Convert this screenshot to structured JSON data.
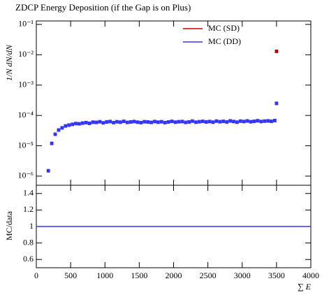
{
  "chart_data": [
    {
      "type": "step",
      "title": "ZDCP Energy Deposition (if the Gap is on Plus)",
      "ylabel": "1/N dN/dN",
      "log_y": true,
      "xlim": [
        0,
        4000
      ],
      "ylim": [
        5e-07,
        0.13
      ],
      "yticks": [
        {
          "value": 1e-06,
          "label": "10⁻⁶"
        },
        {
          "value": 1e-05,
          "label": "10⁻⁵"
        },
        {
          "value": 0.0001,
          "label": "10⁻⁴"
        },
        {
          "value": 0.001,
          "label": "10⁻³"
        },
        {
          "value": 0.01,
          "label": "10⁻²"
        },
        {
          "value": 0.1,
          "label": "10⁻¹"
        }
      ],
      "legend": "top-right",
      "x": [
        175,
        225,
        275,
        325,
        375,
        425,
        475,
        525,
        575,
        625,
        675,
        725,
        775,
        825,
        875,
        925,
        975,
        1025,
        1075,
        1125,
        1175,
        1225,
        1275,
        1325,
        1375,
        1425,
        1475,
        1525,
        1575,
        1625,
        1675,
        1725,
        1775,
        1825,
        1875,
        1925,
        1975,
        2025,
        2075,
        2125,
        2175,
        2225,
        2275,
        2325,
        2375,
        2425,
        2475,
        2525,
        2575,
        2625,
        2675,
        2725,
        2775,
        2825,
        2875,
        2925,
        2975,
        3025,
        3075,
        3125,
        3175,
        3225,
        3275,
        3325,
        3375,
        3425,
        3475,
        3500
      ],
      "series": [
        {
          "name": "MC (SD)",
          "color": "#cc0000",
          "x": [
            3500
          ],
          "values": [
            0.013
          ]
        },
        {
          "name": "MC (DD)",
          "color": "#3333ff",
          "values": [
            1.5e-06,
            1.2e-05,
            2.4e-05,
            3.3e-05,
            3.9e-05,
            4.5e-05,
            4.8e-05,
            5.1e-05,
            5.4e-05,
            5.3e-05,
            5.6e-05,
            5.8e-05,
            5.5e-05,
            6e-05,
            5.9e-05,
            6.2e-05,
            5.7e-05,
            6.1e-05,
            6.3e-05,
            5.8e-05,
            6.2e-05,
            6e-05,
            6.4e-05,
            5.9e-05,
            6.1e-05,
            6.3e-05,
            6e-05,
            5.8e-05,
            6.2e-05,
            6.1e-05,
            5.9e-05,
            6.3e-05,
            6e-05,
            6.2e-05,
            5.8e-05,
            6.1e-05,
            6.4e-05,
            6e-05,
            6.2e-05,
            6.3e-05,
            5.9e-05,
            6.1e-05,
            6.5e-05,
            6e-05,
            6.2e-05,
            6.4e-05,
            6.1e-05,
            6.3e-05,
            6e-05,
            6.5e-05,
            6.2e-05,
            6.4e-05,
            6.1e-05,
            6.6e-05,
            6.3e-05,
            6e-05,
            6.5e-05,
            6.3e-05,
            6.6e-05,
            6.2e-05,
            6.4e-05,
            6.7e-05,
            6.3e-05,
            6.5e-05,
            6.6e-05,
            6.4e-05,
            6.8e-05,
            0.00025
          ]
        }
      ]
    },
    {
      "type": "ratio",
      "ylabel": "MC/data",
      "xlabel": "∑ E",
      "xlim": [
        0,
        4000
      ],
      "xticks": [
        0,
        500,
        1000,
        1500,
        2000,
        2500,
        3000,
        3500,
        4000
      ],
      "ylim": [
        0.5,
        1.5
      ],
      "yticks": [
        0.6,
        0.8,
        1,
        1.2,
        1.4
      ],
      "reference": 1,
      "color": "#3333ff"
    }
  ]
}
